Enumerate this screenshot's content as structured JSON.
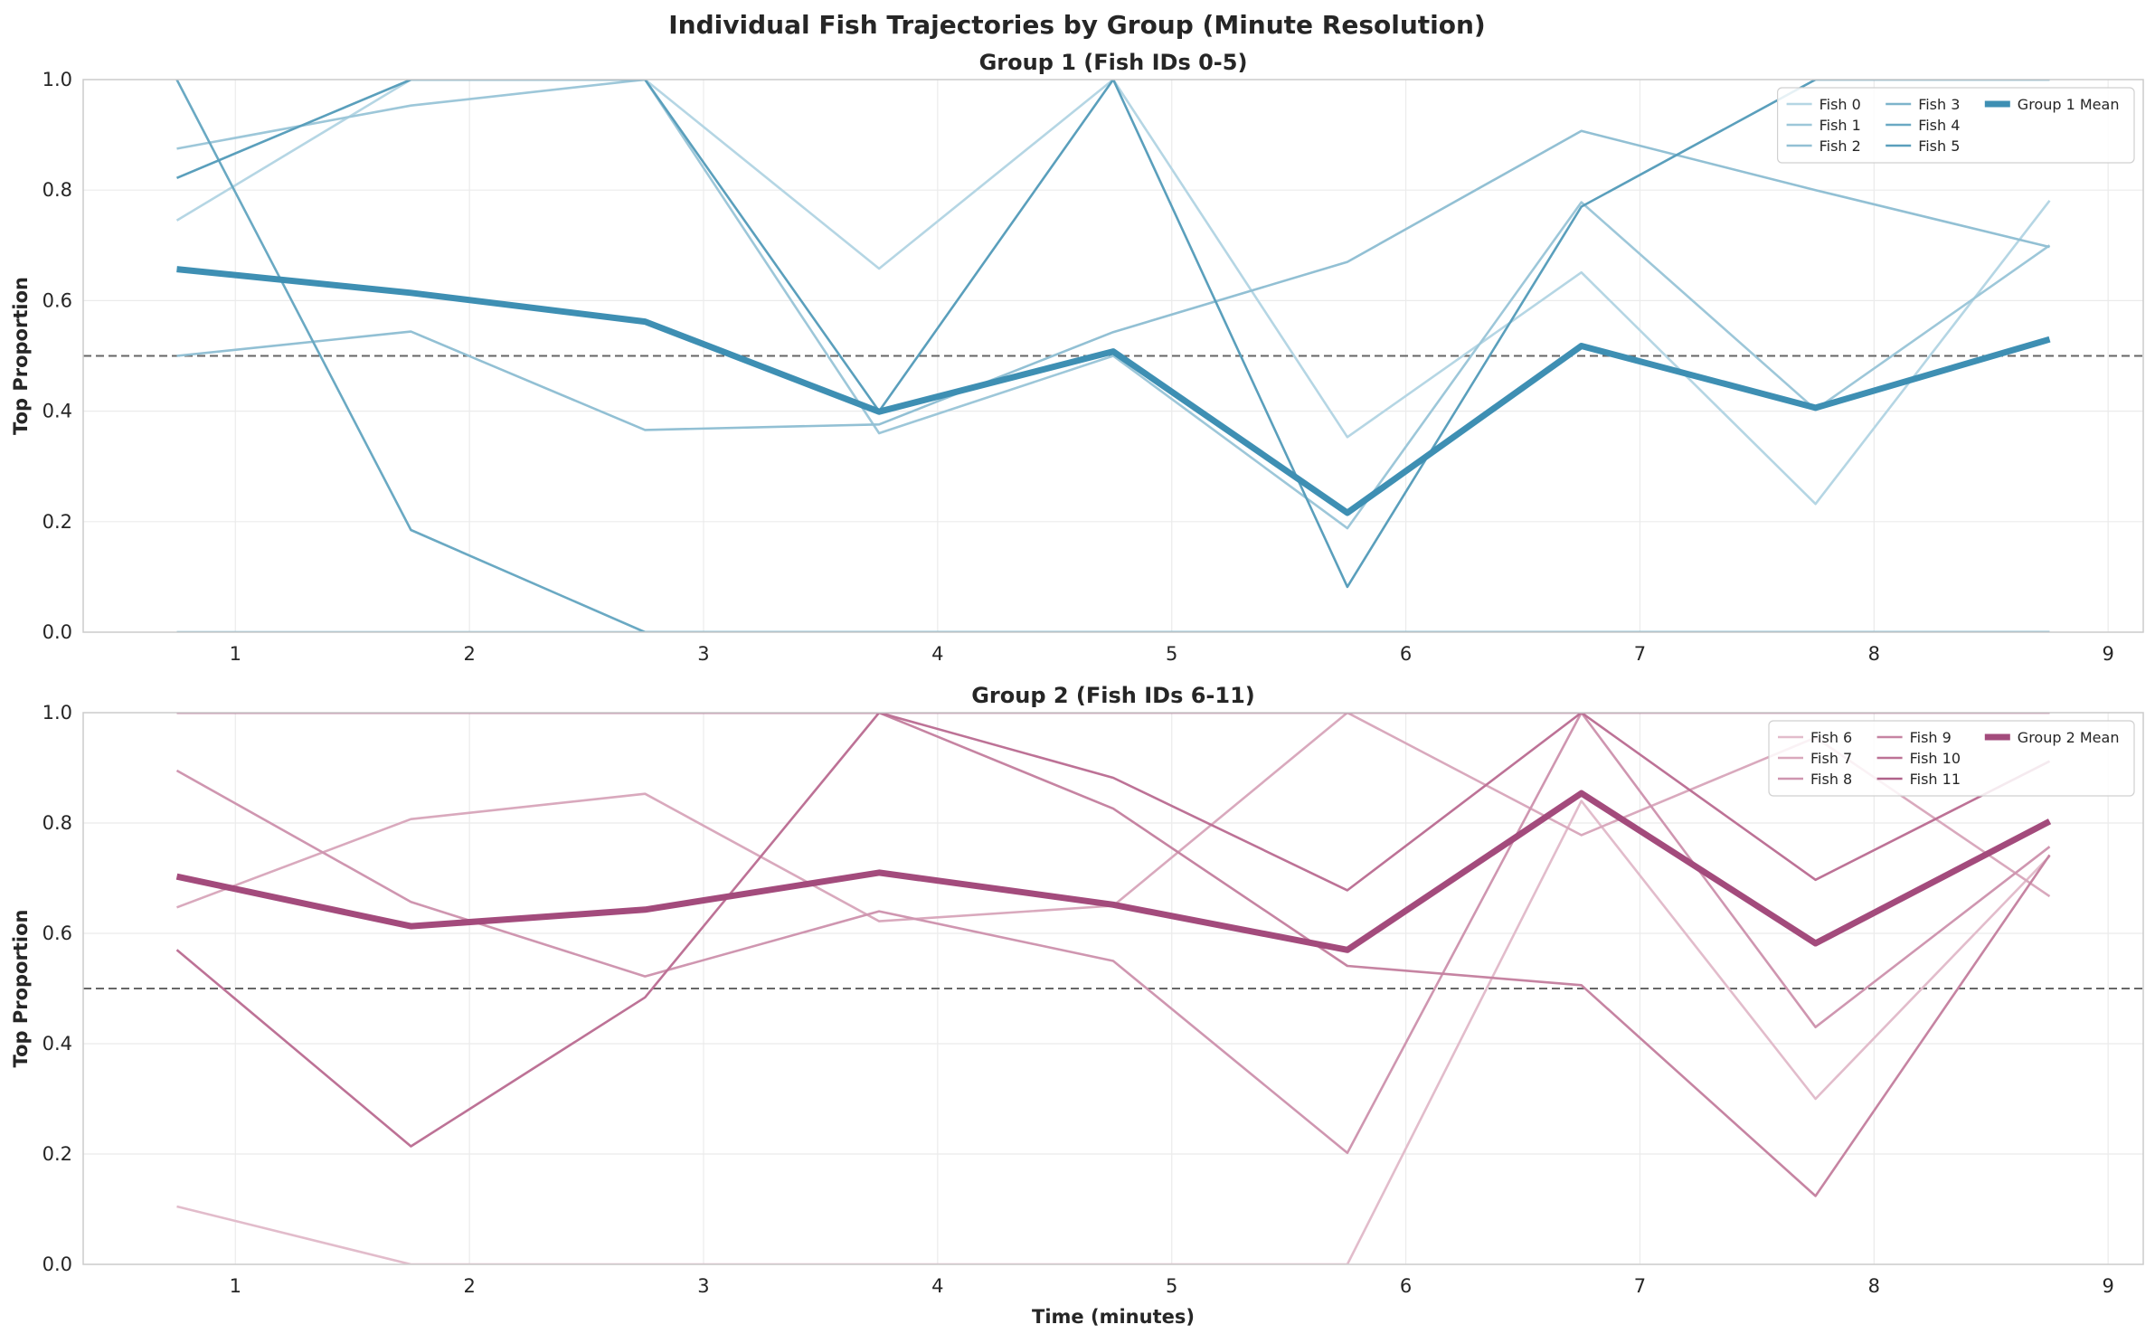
{
  "figure": {
    "title": "Individual Fish Trajectories by Group (Minute Resolution)"
  },
  "chart_data": [
    {
      "type": "line",
      "title": "Group 1 (Fish IDs 0-5)",
      "xlabel": "",
      "ylabel": "Top Proportion",
      "xlim": [
        0.35,
        9.15
      ],
      "ylim": [
        0,
        1
      ],
      "xticks": [
        1,
        2,
        3,
        4,
        5,
        6,
        7,
        8,
        9
      ],
      "yticks": [
        0.0,
        0.2,
        0.4,
        0.6,
        0.8,
        1.0
      ],
      "x": [
        0.75,
        1.75,
        2.75,
        3.75,
        4.75,
        5.75,
        6.75,
        7.75,
        8.75
      ],
      "reference_line": 0.5,
      "grid": true,
      "legend_position": "top-right",
      "legend_columns": 3,
      "series": [
        {
          "name": "Fish 0",
          "color": "#b5d6e4",
          "values": [
            0.745,
            1.0,
            1.0,
            0.658,
            1.0,
            0.353,
            0.651,
            0.232,
            0.781
          ]
        },
        {
          "name": "Fish 1",
          "color": "#9dc7d9",
          "values": [
            0.875,
            0.953,
            1.0,
            0.36,
            0.5,
            0.188,
            0.778,
            0.403,
            0.7
          ]
        },
        {
          "name": "Fish 2",
          "color": "#92c0d4",
          "values": [
            0.5,
            0.544,
            0.366,
            0.376,
            0.543,
            0.67,
            0.907,
            0.8,
            0.697
          ]
        },
        {
          "name": "Fish 3",
          "color": "#7db4cb",
          "values": [
            0.0,
            0.0,
            0.0,
            0.0,
            0.0,
            0.0,
            0.0,
            0.0,
            0.0
          ]
        },
        {
          "name": "Fish 4",
          "color": "#6aa9c3",
          "values": [
            1.0,
            0.185,
            0.0,
            0.0,
            0.0,
            0.0,
            0.0,
            0.0,
            0.0
          ]
        },
        {
          "name": "Fish 5",
          "color": "#5a9fbc",
          "values": [
            0.822,
            1.0,
            1.0,
            0.4,
            1.0,
            0.082,
            0.77,
            1.0,
            1.0
          ]
        },
        {
          "name": "Group 1 Mean",
          "color": "#3e8fb3",
          "mean": true,
          "values": [
            0.657,
            0.614,
            0.562,
            0.399,
            0.508,
            0.216,
            0.518,
            0.406,
            0.53
          ]
        }
      ]
    },
    {
      "type": "line",
      "title": "Group 2 (Fish IDs 6-11)",
      "xlabel": "Time (minutes)",
      "ylabel": "Top Proportion",
      "xlim": [
        0.35,
        9.15
      ],
      "ylim": [
        0,
        1
      ],
      "xticks": [
        1,
        2,
        3,
        4,
        5,
        6,
        7,
        8,
        9
      ],
      "yticks": [
        0.0,
        0.2,
        0.4,
        0.6,
        0.8,
        1.0
      ],
      "x": [
        0.75,
        1.75,
        2.75,
        3.75,
        4.75,
        5.75,
        6.75,
        7.75,
        8.75
      ],
      "reference_line": 0.5,
      "grid": true,
      "legend_position": "top-right",
      "legend_columns": 3,
      "series": [
        {
          "name": "Fish 6",
          "color": "#e2bccb",
          "values": [
            0.105,
            0.0,
            0.0,
            0.0,
            0.0,
            0.0,
            0.84,
            0.3,
            0.74
          ]
        },
        {
          "name": "Fish 7",
          "color": "#d9a9bd",
          "values": [
            0.647,
            0.807,
            0.853,
            0.622,
            0.65,
            1.0,
            0.778,
            0.955,
            0.667
          ]
        },
        {
          "name": "Fish 8",
          "color": "#cf96b0",
          "values": [
            0.895,
            0.657,
            0.522,
            0.64,
            0.55,
            0.202,
            1.0,
            0.43,
            0.757
          ]
        },
        {
          "name": "Fish 9",
          "color": "#c684a2",
          "values": [
            1.0,
            1.0,
            1.0,
            1.0,
            0.826,
            0.541,
            0.506,
            0.124,
            0.742
          ]
        },
        {
          "name": "Fish 10",
          "color": "#bd7296",
          "values": [
            0.57,
            0.214,
            0.484,
            1.0,
            0.882,
            0.678,
            1.0,
            0.697,
            0.912
          ]
        },
        {
          "name": "Fish 11",
          "color": "#b0628a",
          "values": [
            1.0,
            1.0,
            1.0,
            1.0,
            1.0,
            1.0,
            1.0,
            1.0,
            1.0
          ]
        },
        {
          "name": "Group 2 Mean",
          "color": "#a34b7c",
          "mean": true,
          "values": [
            0.703,
            0.613,
            0.643,
            0.71,
            0.652,
            0.57,
            0.854,
            0.582,
            0.803
          ]
        }
      ]
    }
  ]
}
